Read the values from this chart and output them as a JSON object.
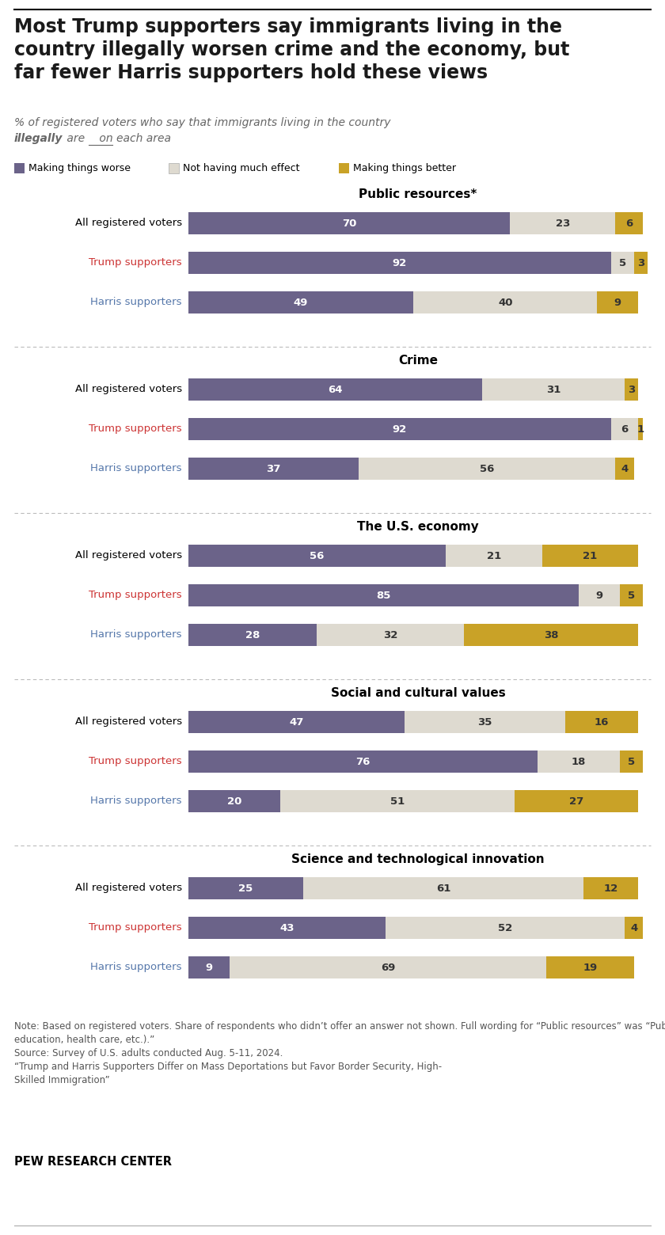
{
  "title": "Most Trump supporters say immigrants living in the\ncountry illegally worsen crime and the economy, but\nfar fewer Harris supporters hold these views",
  "colors": {
    "worse": "#6b6389",
    "neutral": "#dedad0",
    "better": "#c9a227",
    "trump_red": "#cc3333",
    "harris_blue": "#5577aa",
    "title_black": "#1a1a1a",
    "subtitle_gray": "#555555",
    "note_gray": "#555555"
  },
  "sections": [
    {
      "title": "Public resources*",
      "rows": [
        {
          "label": "All registered voters",
          "label_color": "black",
          "worse": 70,
          "neutral": 23,
          "better": 6
        },
        {
          "label": "Trump supporters",
          "label_color": "trump",
          "worse": 92,
          "neutral": 5,
          "better": 3
        },
        {
          "label": "Harris supporters",
          "label_color": "harris",
          "worse": 49,
          "neutral": 40,
          "better": 9
        }
      ]
    },
    {
      "title": "Crime",
      "rows": [
        {
          "label": "All registered voters",
          "label_color": "black",
          "worse": 64,
          "neutral": 31,
          "better": 3
        },
        {
          "label": "Trump supporters",
          "label_color": "trump",
          "worse": 92,
          "neutral": 6,
          "better": 1
        },
        {
          "label": "Harris supporters",
          "label_color": "harris",
          "worse": 37,
          "neutral": 56,
          "better": 4
        }
      ]
    },
    {
      "title": "The U.S. economy",
      "rows": [
        {
          "label": "All registered voters",
          "label_color": "black",
          "worse": 56,
          "neutral": 21,
          "better": 21
        },
        {
          "label": "Trump supporters",
          "label_color": "trump",
          "worse": 85,
          "neutral": 9,
          "better": 5
        },
        {
          "label": "Harris supporters",
          "label_color": "harris",
          "worse": 28,
          "neutral": 32,
          "better": 38
        }
      ]
    },
    {
      "title": "Social and cultural values",
      "rows": [
        {
          "label": "All registered voters",
          "label_color": "black",
          "worse": 47,
          "neutral": 35,
          "better": 16
        },
        {
          "label": "Trump supporters",
          "label_color": "trump",
          "worse": 76,
          "neutral": 18,
          "better": 5
        },
        {
          "label": "Harris supporters",
          "label_color": "harris",
          "worse": 20,
          "neutral": 51,
          "better": 27
        }
      ]
    },
    {
      "title": "Science and technological innovation",
      "rows": [
        {
          "label": "All registered voters",
          "label_color": "black",
          "worse": 25,
          "neutral": 61,
          "better": 12
        },
        {
          "label": "Trump supporters",
          "label_color": "trump",
          "worse": 43,
          "neutral": 52,
          "better": 4
        },
        {
          "label": "Harris supporters",
          "label_color": "harris",
          "worse": 9,
          "neutral": 69,
          "better": 19
        }
      ]
    }
  ],
  "note_text": "Note: Based on registered voters. Share of respondents who didn’t offer an answer not shown. Full wording for “Public resources” was “Public resources (such as housing,\neducation, health care, etc.).”\nSource: Survey of U.S. adults conducted Aug. 5-11, 2024.\n“Trump and Harris Supporters Differ on Mass Deportations but Favor Border Security, High-\nSkilled Immigration”",
  "source_label": "PEW RESEARCH CENTER"
}
